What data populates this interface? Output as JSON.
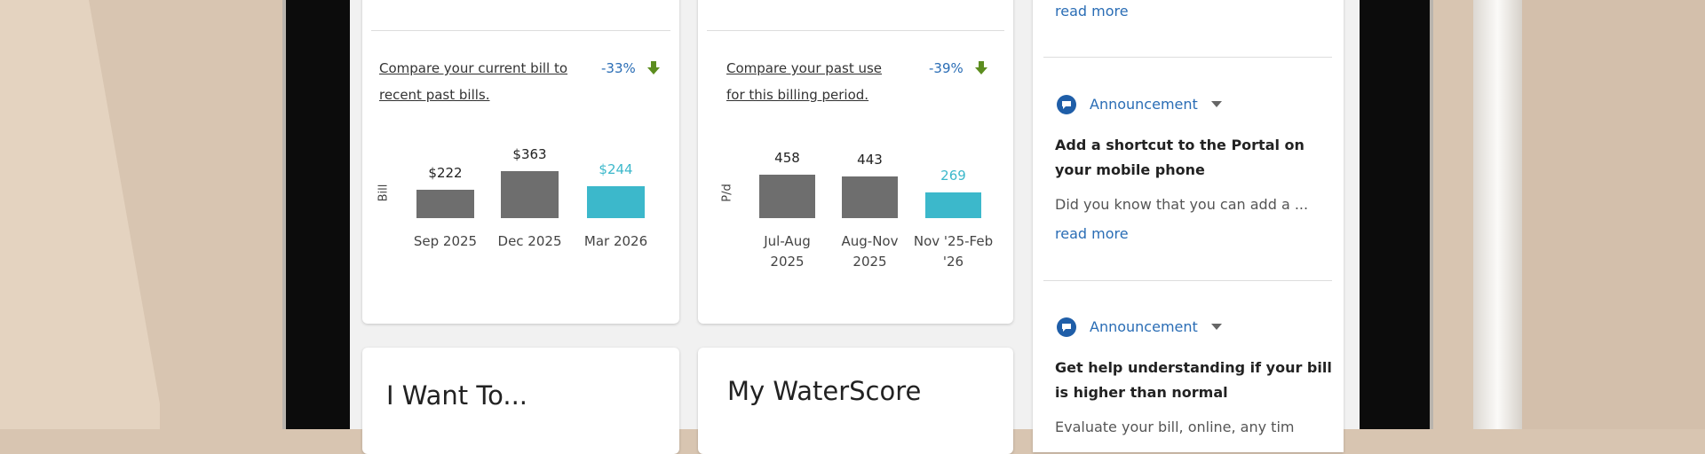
{
  "top_link": "read more",
  "cards": [
    {
      "prompt": "Compare your current bill to recent past bills.",
      "change": "-33%",
      "chart": {
        "type": "bar",
        "axis_label": "Bill",
        "categories": [
          "Sep 2025",
          "Dec 2025",
          "Mar 2026"
        ],
        "values": [
          222,
          363,
          244
        ],
        "value_labels": [
          "$222",
          "$363",
          "$244"
        ],
        "colors": [
          "#6e6e6e",
          "#6e6e6e",
          "#3cb8cb"
        ]
      }
    },
    {
      "prompt": "Compare your past use for this billing period.",
      "change": "-39%",
      "chart": {
        "type": "bar",
        "axis_label": "P/d",
        "categories": [
          "Jul-Aug 2025",
          "Aug-Nov 2025",
          "Nov '25-Feb '26"
        ],
        "values": [
          458,
          443,
          269
        ],
        "colors": [
          "#6e6e6e",
          "#6e6e6e",
          "#3cb8cb"
        ]
      }
    }
  ],
  "announcements": [
    {
      "tag": "Announcement",
      "title": "Add a shortcut to the Portal on your mobile phone",
      "body": "Did you know that you can add a ...",
      "link": "read more"
    },
    {
      "tag": "Announcement",
      "title": "Get help understanding if your bill is higher than normal",
      "body": "Evaluate your bill, online, any tim"
    }
  ],
  "tiles": [
    {
      "title": "I Want To..."
    },
    {
      "title": "My WaterScore"
    }
  ]
}
